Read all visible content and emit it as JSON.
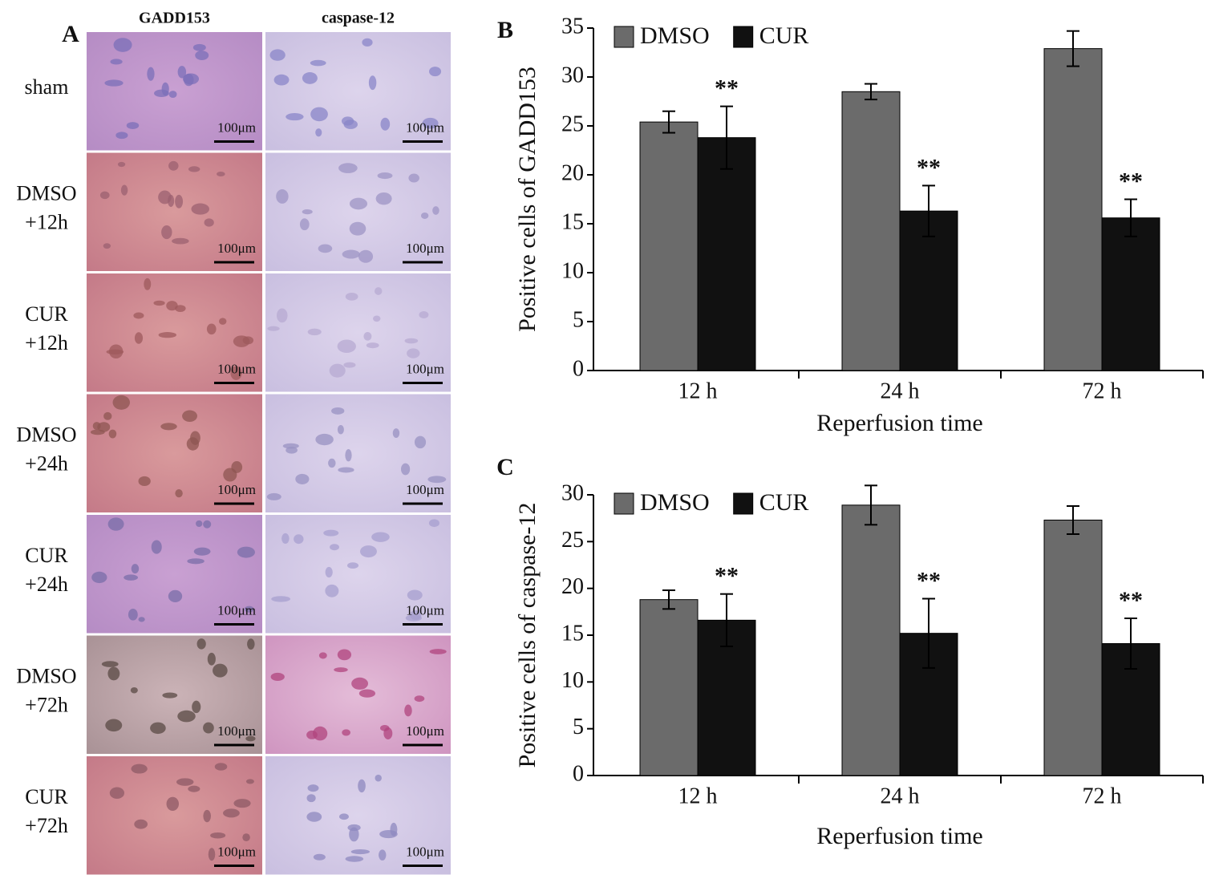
{
  "panel_a": {
    "panel_label": "A",
    "columns": [
      "GADD153",
      "caspase-12"
    ],
    "rows": [
      {
        "label": [
          "sham"
        ],
        "scale": [
          "100μm",
          "100μm"
        ]
      },
      {
        "label": [
          "DMSO",
          "+12h"
        ],
        "scale": [
          "100μm",
          "100μm"
        ]
      },
      {
        "label": [
          "CUR",
          "+12h"
        ],
        "scale": [
          "100μm",
          "100μm"
        ]
      },
      {
        "label": [
          "DMSO",
          "+24h"
        ],
        "scale": [
          "100μm",
          "100μm"
        ]
      },
      {
        "label": [
          "CUR",
          "+24h"
        ],
        "scale": [
          "100μm",
          "100μm"
        ]
      },
      {
        "label": [
          "DMSO",
          "+72h"
        ],
        "scale": [
          "100μm",
          "100μm"
        ]
      },
      {
        "label": [
          "CUR",
          "+72h"
        ],
        "scale": [
          "100μm",
          "100μm"
        ]
      }
    ]
  },
  "chart_data": [
    {
      "type": "bar",
      "panel_label": "B",
      "y_label": "Positive cells of GADD153",
      "x_label": "Reperfusion time",
      "categories": [
        "12 h",
        "24 h",
        "72 h"
      ],
      "series": [
        {
          "name": "DMSO",
          "color": "#6b6b6b",
          "values": [
            25.4,
            28.5,
            32.9
          ],
          "errors": [
            1.1,
            0.8,
            1.8
          ]
        },
        {
          "name": "CUR",
          "color": "#111111",
          "values": [
            23.8,
            16.3,
            15.6
          ],
          "errors": [
            3.2,
            2.6,
            1.9
          ],
          "annotations": [
            "**",
            "**",
            "**"
          ]
        }
      ],
      "ylim": [
        0,
        35
      ],
      "yticks": [
        0,
        5,
        10,
        15,
        20,
        25,
        30,
        35
      ],
      "legend": "top-left"
    },
    {
      "type": "bar",
      "panel_label": "C",
      "y_label": "Positive cells of caspase-12",
      "x_label": "Reperfusion time",
      "categories": [
        "12 h",
        "24 h",
        "72 h"
      ],
      "series": [
        {
          "name": "DMSO",
          "color": "#6b6b6b",
          "values": [
            18.8,
            28.9,
            27.3
          ],
          "errors": [
            1.0,
            2.1,
            1.5
          ]
        },
        {
          "name": "CUR",
          "color": "#111111",
          "values": [
            16.6,
            15.2,
            14.1
          ],
          "errors": [
            2.8,
            3.7,
            2.7
          ],
          "annotations": [
            "**",
            "**",
            "**"
          ]
        }
      ],
      "ylim": [
        0,
        30
      ],
      "yticks": [
        0,
        5,
        10,
        15,
        20,
        25,
        30
      ],
      "legend": "top-left"
    }
  ]
}
